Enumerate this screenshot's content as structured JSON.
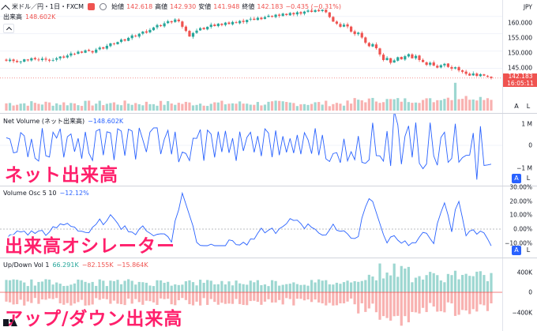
{
  "header": {
    "symbol": "米ドル／円・1日・FXCM",
    "open_label": "始値",
    "open": "142.618",
    "high_label": "高値",
    "high": "142.930",
    "low_label": "安値",
    "low": "141.948",
    "close_label": "終値",
    "close": "142.183",
    "change": "−0.435 (−0.31%)",
    "currency": "JPY",
    "collapse_icon": "chevron-up-icon"
  },
  "volume_legend": {
    "title": "出来高",
    "value": "148.602K"
  },
  "price_badge": {
    "price": "142.183",
    "countdown": "16:05:11"
  },
  "price_axis": [
    "160.000",
    "155.000",
    "150.000",
    "145.000"
  ],
  "net_volume": {
    "title": "Net Volume (ネット出来高)",
    "value": "−148.602K",
    "axis": [
      "1 M",
      "0",
      "−1 M"
    ],
    "overlay": "ネット出来高"
  },
  "volume_osc": {
    "title": "Volume Osc 5 10",
    "value": "−12.12%",
    "axis": [
      "30.00%",
      "20.00%",
      "10.00%",
      "0.00%",
      "−10.00%"
    ],
    "overlay": "出来高オシレーター"
  },
  "updown": {
    "title": "Up/Down Vol 1",
    "up": "66.291K",
    "down": "−82.155K",
    "delta": "−15.864K",
    "axis": [
      "400K",
      "0",
      "−400K"
    ],
    "overlay": "アップ/ダウン出来高"
  },
  "scale_buttons": {
    "auto": "A",
    "log": "L"
  },
  "colors": {
    "up": "#26a69a",
    "down": "#ef5350",
    "line": "#2962ff",
    "overlay": "#ff1f6b"
  },
  "chart_data": {
    "type": "candlestick",
    "price_range": [
      141,
      162
    ],
    "closes": [
      147.2,
      147.5,
      147.1,
      146.8,
      147.0,
      147.6,
      147.3,
      147.9,
      147.6,
      147.4,
      147.8,
      147.5,
      147.2,
      147.4,
      147.9,
      148.4,
      148.1,
      148.7,
      149.3,
      149.1,
      149.8,
      149.5,
      150.2,
      150.0,
      149.6,
      150.4,
      151.0,
      150.7,
      151.5,
      152.2,
      152.0,
      152.6,
      153.3,
      153.0,
      153.8,
      154.5,
      154.2,
      155.0,
      155.6,
      155.3,
      156.1,
      156.8,
      157.5,
      157.2,
      158.0,
      158.6,
      158.3,
      159.1,
      158.6,
      157.0,
      155.8,
      154.2,
      155.2,
      155.9,
      156.6,
      156.3,
      157.0,
      157.6,
      157.2,
      157.9,
      157.5,
      158.2,
      157.8,
      158.4,
      158.1,
      158.7,
      158.4,
      159.0,
      159.3,
      159.0,
      159.6,
      159.2,
      159.8,
      160.2,
      159.9,
      160.5,
      160.2,
      160.8,
      160.4,
      161.0,
      160.6,
      161.2,
      160.8,
      161.4,
      161.7,
      161.3,
      161.8,
      161.5,
      161.9,
      161.2,
      159.8,
      158.5,
      157.9,
      157.0,
      157.6,
      157.1,
      155.6,
      154.9,
      155.3,
      153.9,
      152.4,
      151.4,
      152.0,
      150.8,
      149.0,
      147.4,
      148.0,
      146.6,
      147.3,
      148.2,
      147.6,
      148.5,
      149.1,
      147.9,
      148.6,
      147.4,
      146.8,
      146.0,
      146.6,
      145.8,
      145.2,
      145.9,
      146.3,
      145.4,
      144.9,
      145.3,
      144.4,
      144.0,
      143.4,
      142.9,
      143.5,
      142.8,
      143.3,
      142.9,
      142.6,
      142.2
    ]
  }
}
